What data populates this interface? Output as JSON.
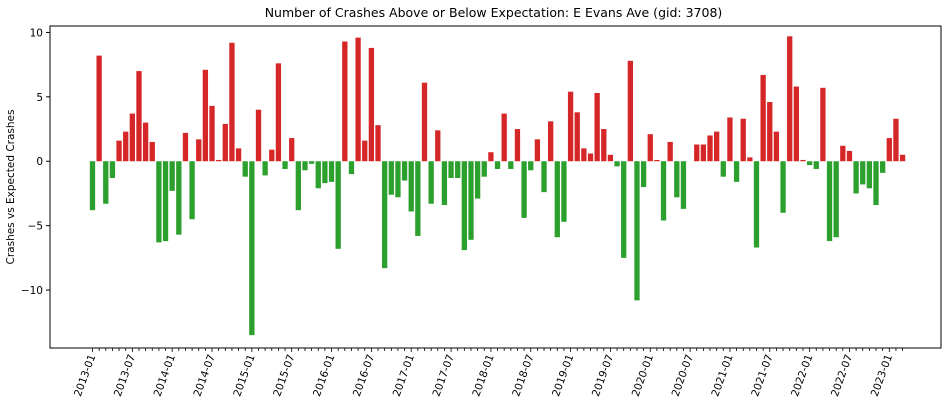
{
  "chart_data": {
    "type": "bar",
    "title": "Number of Crashes Above or Below Expectation: E Evans Ave (gid: 3708)",
    "xlabel": "",
    "ylabel": "Crashes vs Expected Crashes",
    "ylim": [
      -14.5,
      10.5
    ],
    "yticks": [
      -10,
      -5,
      0,
      5,
      10
    ],
    "grid": false,
    "positive_color": "#d62728",
    "negative_color": "#2ca02c",
    "start_month": "2013-01",
    "tick_labels": [
      "2013-01",
      "2013-07",
      "2014-01",
      "2014-07",
      "2015-01",
      "2015-07",
      "2016-01",
      "2016-07",
      "2017-01",
      "2017-07",
      "2018-01",
      "2018-07",
      "2019-01",
      "2019-07",
      "2020-01",
      "2020-07",
      "2021-01",
      "2021-07",
      "2022-01",
      "2022-07",
      "2023-01"
    ],
    "values": [
      -3.8,
      8.2,
      -3.3,
      -1.3,
      1.6,
      2.3,
      3.7,
      7.0,
      3.0,
      1.5,
      -6.3,
      -6.2,
      -2.3,
      -5.7,
      2.2,
      -4.5,
      1.7,
      7.1,
      4.3,
      0.1,
      2.9,
      9.2,
      1.0,
      -1.2,
      -13.5,
      4.0,
      -1.1,
      0.9,
      7.6,
      -0.6,
      1.8,
      -3.8,
      -0.7,
      -0.2,
      -2.1,
      -1.7,
      -1.6,
      -6.8,
      9.3,
      -1.0,
      9.6,
      1.6,
      8.8,
      2.8,
      -8.3,
      -2.6,
      -2.8,
      -1.5,
      -3.9,
      -5.8,
      6.1,
      -3.3,
      2.4,
      -3.4,
      -1.3,
      -1.3,
      -6.9,
      -6.1,
      -2.9,
      -1.2,
      0.7,
      -0.6,
      3.7,
      -0.6,
      2.5,
      -4.4,
      -0.7,
      1.7,
      -2.4,
      3.1,
      -5.9,
      -4.7,
      5.4,
      3.8,
      1.0,
      0.6,
      5.3,
      2.5,
      0.5,
      -0.4,
      -7.5,
      7.8,
      -10.8,
      -2.0,
      2.1,
      0.1,
      -4.6,
      1.5,
      -2.8,
      -3.7,
      0.0,
      1.3,
      1.3,
      2.0,
      2.3,
      -1.2,
      3.4,
      -1.6,
      3.3,
      0.3,
      -6.7,
      6.7,
      4.6,
      2.3,
      -4.0,
      9.7,
      5.8,
      0.1,
      -0.3,
      -0.6,
      5.7,
      -6.2,
      -5.9,
      1.2,
      0.8,
      -2.5,
      -1.8,
      -2.1,
      -3.4,
      -0.9,
      1.8,
      3.3,
      0.5
    ]
  }
}
